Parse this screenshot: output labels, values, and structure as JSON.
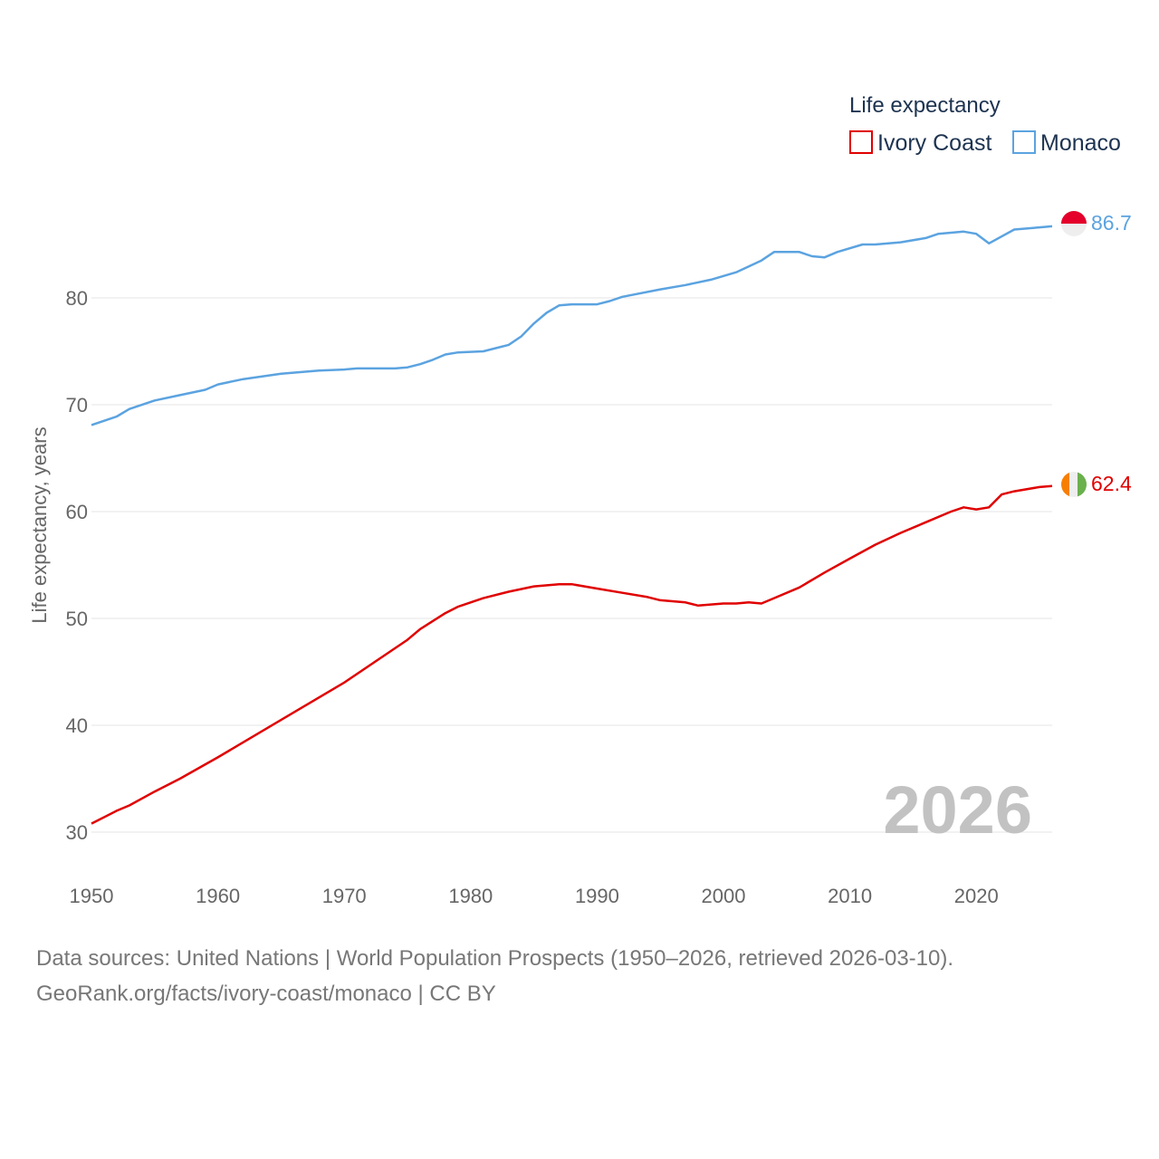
{
  "chart_data": {
    "type": "line",
    "title": "",
    "xlabel": "",
    "ylabel": "Life expectancy, years",
    "xlim": [
      1950,
      2026
    ],
    "ylim": [
      30,
      89
    ],
    "y_ticks": [
      30,
      40,
      50,
      60,
      70,
      80
    ],
    "x_ticks": [
      1950,
      1960,
      1970,
      1980,
      1990,
      2000,
      2010,
      2020
    ],
    "grid": true,
    "legend": {
      "title": "Life expectancy",
      "position": "top-right"
    },
    "year_label": "2026",
    "series": [
      {
        "name": "Ivory Coast",
        "color": "#e00000",
        "flag": "ivory-coast-flag",
        "end_label": "62.4",
        "points": [
          [
            1950,
            30.8
          ],
          [
            1952,
            32.0
          ],
          [
            1953,
            32.5
          ],
          [
            1955,
            33.8
          ],
          [
            1957,
            35.0
          ],
          [
            1960,
            37.0
          ],
          [
            1965,
            40.5
          ],
          [
            1970,
            44.0
          ],
          [
            1975,
            48.0
          ],
          [
            1976,
            49.0
          ],
          [
            1978,
            50.5
          ],
          [
            1979,
            51.1
          ],
          [
            1981,
            51.9
          ],
          [
            1983,
            52.5
          ],
          [
            1985,
            53.0
          ],
          [
            1987,
            53.2
          ],
          [
            1988,
            53.2
          ],
          [
            1990,
            52.8
          ],
          [
            1992,
            52.4
          ],
          [
            1994,
            52.0
          ],
          [
            1995,
            51.7
          ],
          [
            1997,
            51.5
          ],
          [
            1998,
            51.2
          ],
          [
            2000,
            51.4
          ],
          [
            2001,
            51.4
          ],
          [
            2002,
            51.5
          ],
          [
            2003,
            51.4
          ],
          [
            2004,
            51.9
          ],
          [
            2006,
            52.9
          ],
          [
            2008,
            54.3
          ],
          [
            2010,
            55.6
          ],
          [
            2012,
            56.9
          ],
          [
            2014,
            58.0
          ],
          [
            2016,
            59.0
          ],
          [
            2018,
            60.0
          ],
          [
            2019,
            60.4
          ],
          [
            2020,
            60.2
          ],
          [
            2021,
            60.4
          ],
          [
            2022,
            61.6
          ],
          [
            2023,
            61.9
          ],
          [
            2025,
            62.3
          ],
          [
            2026,
            62.4
          ]
        ]
      },
      {
        "name": "Monaco",
        "color": "#5ba3e0",
        "flag": "monaco-flag",
        "end_label": "86.7",
        "points": [
          [
            1950,
            68.1
          ],
          [
            1952,
            68.9
          ],
          [
            1953,
            69.6
          ],
          [
            1955,
            70.4
          ],
          [
            1957,
            70.9
          ],
          [
            1959,
            71.4
          ],
          [
            1960,
            71.9
          ],
          [
            1962,
            72.4
          ],
          [
            1965,
            72.9
          ],
          [
            1968,
            73.2
          ],
          [
            1970,
            73.3
          ],
          [
            1971,
            73.4
          ],
          [
            1974,
            73.4
          ],
          [
            1975,
            73.5
          ],
          [
            1976,
            73.8
          ],
          [
            1977,
            74.2
          ],
          [
            1978,
            74.7
          ],
          [
            1979,
            74.9
          ],
          [
            1981,
            75.0
          ],
          [
            1983,
            75.6
          ],
          [
            1984,
            76.4
          ],
          [
            1985,
            77.6
          ],
          [
            1986,
            78.6
          ],
          [
            1987,
            79.3
          ],
          [
            1988,
            79.4
          ],
          [
            1990,
            79.4
          ],
          [
            1991,
            79.7
          ],
          [
            1992,
            80.1
          ],
          [
            1995,
            80.8
          ],
          [
            1997,
            81.2
          ],
          [
            1999,
            81.7
          ],
          [
            2001,
            82.4
          ],
          [
            2003,
            83.5
          ],
          [
            2004,
            84.3
          ],
          [
            2005,
            84.3
          ],
          [
            2006,
            84.3
          ],
          [
            2007,
            83.9
          ],
          [
            2008,
            83.8
          ],
          [
            2009,
            84.3
          ],
          [
            2011,
            85.0
          ],
          [
            2012,
            85.0
          ],
          [
            2014,
            85.2
          ],
          [
            2016,
            85.6
          ],
          [
            2017,
            86.0
          ],
          [
            2019,
            86.2
          ],
          [
            2020,
            86.0
          ],
          [
            2021,
            85.1
          ],
          [
            2023,
            86.4
          ],
          [
            2025,
            86.6
          ],
          [
            2026,
            86.7
          ]
        ]
      }
    ]
  },
  "source": {
    "line1": "Data sources: United Nations | World Population Prospects (1950–2026, retrieved 2026-03-10).",
    "line2": "GeoRank.org/facts/ivory-coast/monaco | CC BY"
  }
}
